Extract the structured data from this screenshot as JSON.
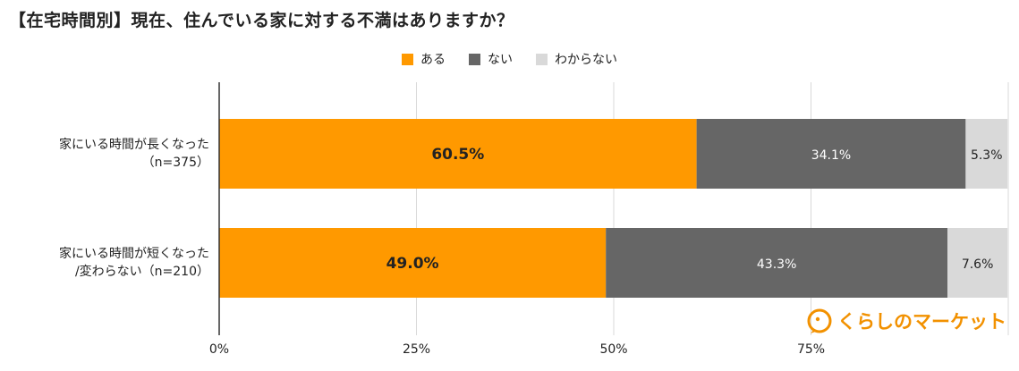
{
  "title": "【在宅時間別】現在、住んでいる家に対する不満はありますか？",
  "logo_text": "くらしのマーケット",
  "chart_data": {
    "type": "bar",
    "orientation": "horizontal",
    "stacked": true,
    "categories": [
      [
        "家にいる時間が長くなった",
        "（n=375）"
      ],
      [
        "家にいる時間が短くなった",
        "/変わらない（n=210）"
      ]
    ],
    "series": [
      {
        "name": "ある",
        "color": "#ff9900",
        "values": [
          60.5,
          49.0
        ],
        "labels": [
          "60.5%",
          "49.0%"
        ]
      },
      {
        "name": "ない",
        "color": "#666666",
        "values": [
          34.1,
          43.3
        ],
        "labels": [
          "34.1%",
          "43.3%"
        ]
      },
      {
        "name": "わからない",
        "color": "#d9d9d9",
        "values": [
          5.3,
          7.6
        ],
        "labels": [
          "5.3%",
          "7.6%"
        ]
      }
    ],
    "xlim": [
      0,
      100
    ],
    "ticks": [
      0,
      25,
      50,
      75
    ],
    "tick_labels": [
      "0%",
      "25%",
      "50%",
      "75%"
    ],
    "grid": true,
    "legend_position": "top"
  }
}
